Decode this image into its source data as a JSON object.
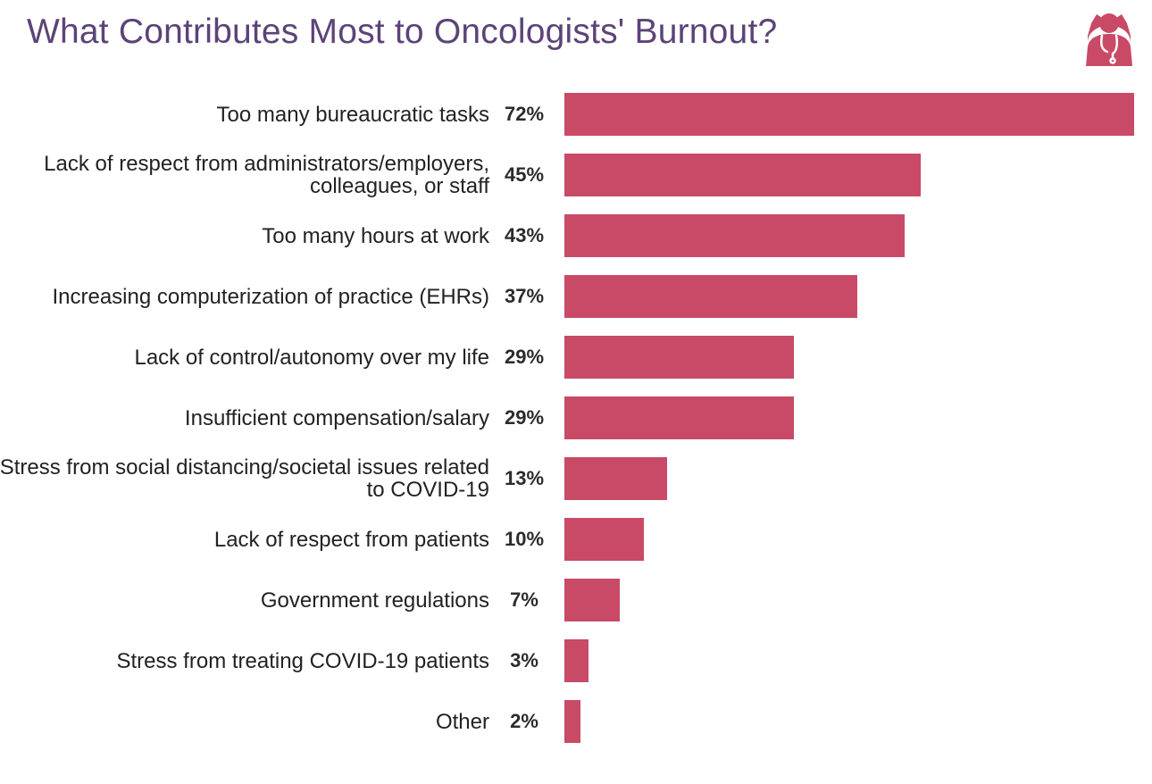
{
  "title": "What Contributes Most to Oncologists' Burnout?",
  "colors": {
    "bar": "#c94a67",
    "title": "#5c4378",
    "logo": "#c94a67"
  },
  "logo": {
    "icon": "doctor-stress-icon"
  },
  "chart_data": {
    "type": "bar",
    "orientation": "horizontal",
    "title": "What Contributes Most to Oncologists' Burnout?",
    "xlim": [
      0,
      72
    ],
    "grid": false,
    "categories": [
      "Too many bureaucratic tasks",
      "Lack of respect from administrators/employers, colleagues, or staff",
      "Too many hours at work",
      "Increasing computerization of practice (EHRs)",
      "Lack of control/autonomy over my life",
      "Insufficient compensation/salary",
      "Stress from social distancing/societal issues related to COVID-19",
      "Lack of respect from patients",
      "Government regulations",
      "Stress from treating COVID-19 patients",
      "Other"
    ],
    "values": [
      72,
      45,
      43,
      37,
      29,
      29,
      13,
      10,
      7,
      3,
      2
    ],
    "value_labels": [
      "72%",
      "45%",
      "43%",
      "37%",
      "29%",
      "29%",
      "13%",
      "10%",
      "7%",
      "3%",
      "2%"
    ]
  }
}
